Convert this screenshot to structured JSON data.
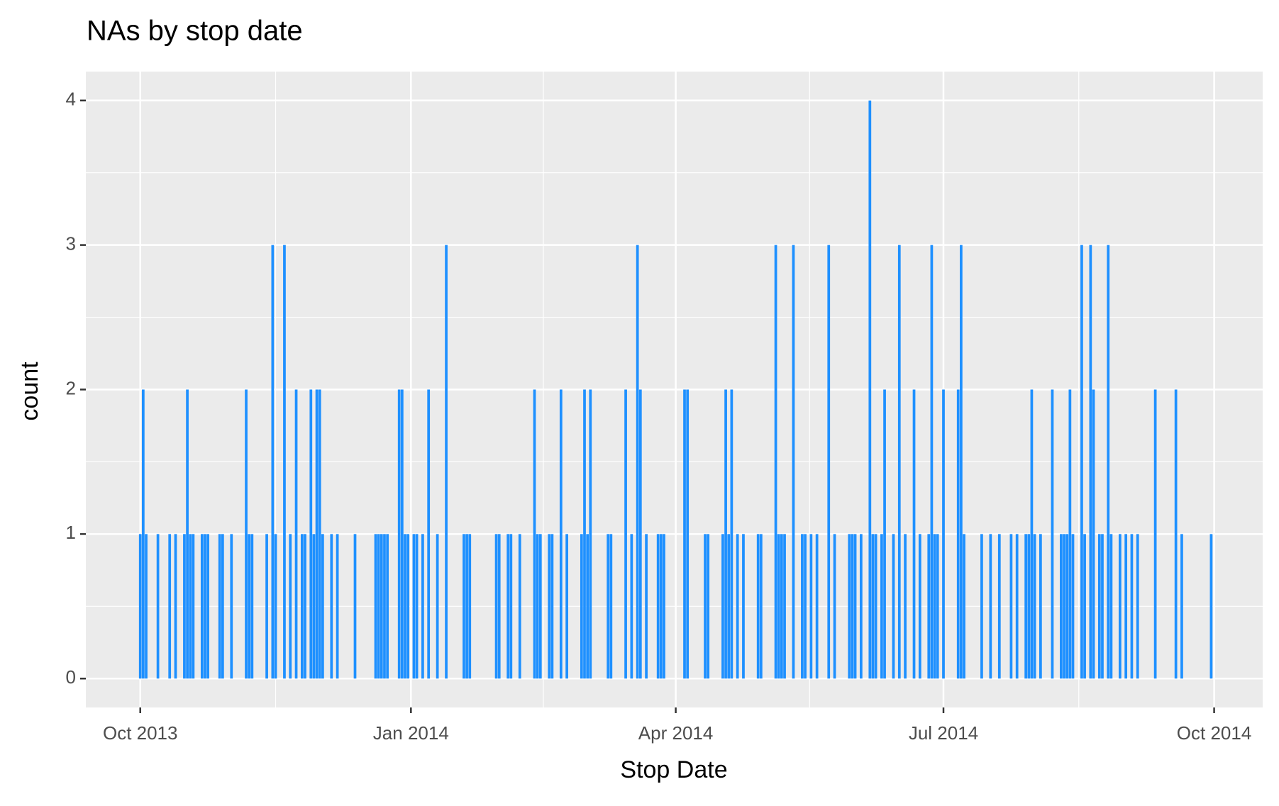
{
  "chart_data": {
    "type": "bar",
    "title": "NAs by stop date",
    "x_label": "Stop Date",
    "y_label": "count",
    "color": "#1e90ff",
    "grid": true,
    "x": [
      0,
      1,
      2,
      6,
      10,
      12,
      15,
      16,
      17,
      18,
      21,
      22,
      23,
      27,
      28,
      31,
      36,
      37,
      38,
      43,
      45,
      46,
      49,
      51,
      53,
      55,
      56,
      58,
      59,
      60,
      61,
      62,
      65,
      67,
      73,
      80,
      81,
      82,
      83,
      84,
      88,
      89,
      90,
      91,
      93,
      94,
      96,
      98,
      101,
      104,
      110,
      111,
      112,
      121,
      122,
      125,
      126,
      129,
      134,
      135,
      136,
      139,
      140,
      143,
      145,
      150,
      151,
      152,
      153,
      159,
      160,
      165,
      167,
      169,
      170,
      172,
      176,
      177,
      178,
      185,
      186,
      192,
      193,
      198,
      199,
      200,
      201,
      203,
      205,
      210,
      211,
      216,
      217,
      218,
      219,
      222,
      225,
      226,
      228,
      230,
      234,
      236,
      241,
      242,
      243,
      245,
      248,
      249,
      250,
      252,
      253,
      256,
      258,
      260,
      263,
      265,
      268,
      269,
      270,
      271,
      273,
      278,
      279,
      280,
      286,
      289,
      292,
      296,
      298,
      301,
      302,
      303,
      304,
      306,
      310,
      313,
      314,
      315,
      316,
      317,
      320,
      321,
      323,
      324,
      326,
      327,
      329,
      330,
      333,
      335,
      337,
      339,
      345,
      352,
      354,
      364
    ],
    "values": [
      1,
      2,
      1,
      1,
      1,
      1,
      1,
      2,
      1,
      1,
      1,
      1,
      1,
      1,
      1,
      1,
      2,
      1,
      1,
      1,
      3,
      1,
      3,
      1,
      2,
      1,
      1,
      2,
      1,
      2,
      2,
      1,
      1,
      1,
      1,
      1,
      1,
      1,
      1,
      1,
      2,
      2,
      1,
      1,
      1,
      1,
      1,
      2,
      1,
      3,
      1,
      1,
      1,
      1,
      1,
      1,
      1,
      1,
      2,
      1,
      1,
      1,
      1,
      2,
      1,
      1,
      2,
      1,
      2,
      1,
      1,
      2,
      1,
      3,
      2,
      1,
      1,
      1,
      1,
      2,
      2,
      1,
      1,
      1,
      2,
      1,
      2,
      1,
      1,
      1,
      1,
      3,
      1,
      1,
      1,
      3,
      1,
      1,
      1,
      1,
      3,
      1,
      1,
      1,
      1,
      1,
      4,
      1,
      1,
      1,
      2,
      1,
      3,
      1,
      2,
      1,
      1,
      3,
      1,
      1,
      2,
      2,
      3,
      1,
      1,
      1,
      1,
      1,
      1,
      1,
      1,
      2,
      1,
      1,
      2,
      1,
      1,
      1,
      2,
      1,
      3,
      1,
      3,
      2,
      1,
      1,
      3,
      1,
      1,
      1,
      1,
      1,
      2,
      2,
      1,
      1
    ],
    "xlim": [
      -18.5,
      381.5
    ],
    "xticks": [
      {
        "value": 0,
        "label": "Oct 2013"
      },
      {
        "value": 92,
        "label": "Jan 2014"
      },
      {
        "value": 182,
        "label": "Apr 2014"
      },
      {
        "value": 273,
        "label": "Jul 2014"
      },
      {
        "value": 365,
        "label": "Oct 2014"
      }
    ],
    "ylim": [
      -0.2,
      4.2
    ],
    "yticks": [
      0,
      1,
      2,
      3,
      4
    ]
  }
}
